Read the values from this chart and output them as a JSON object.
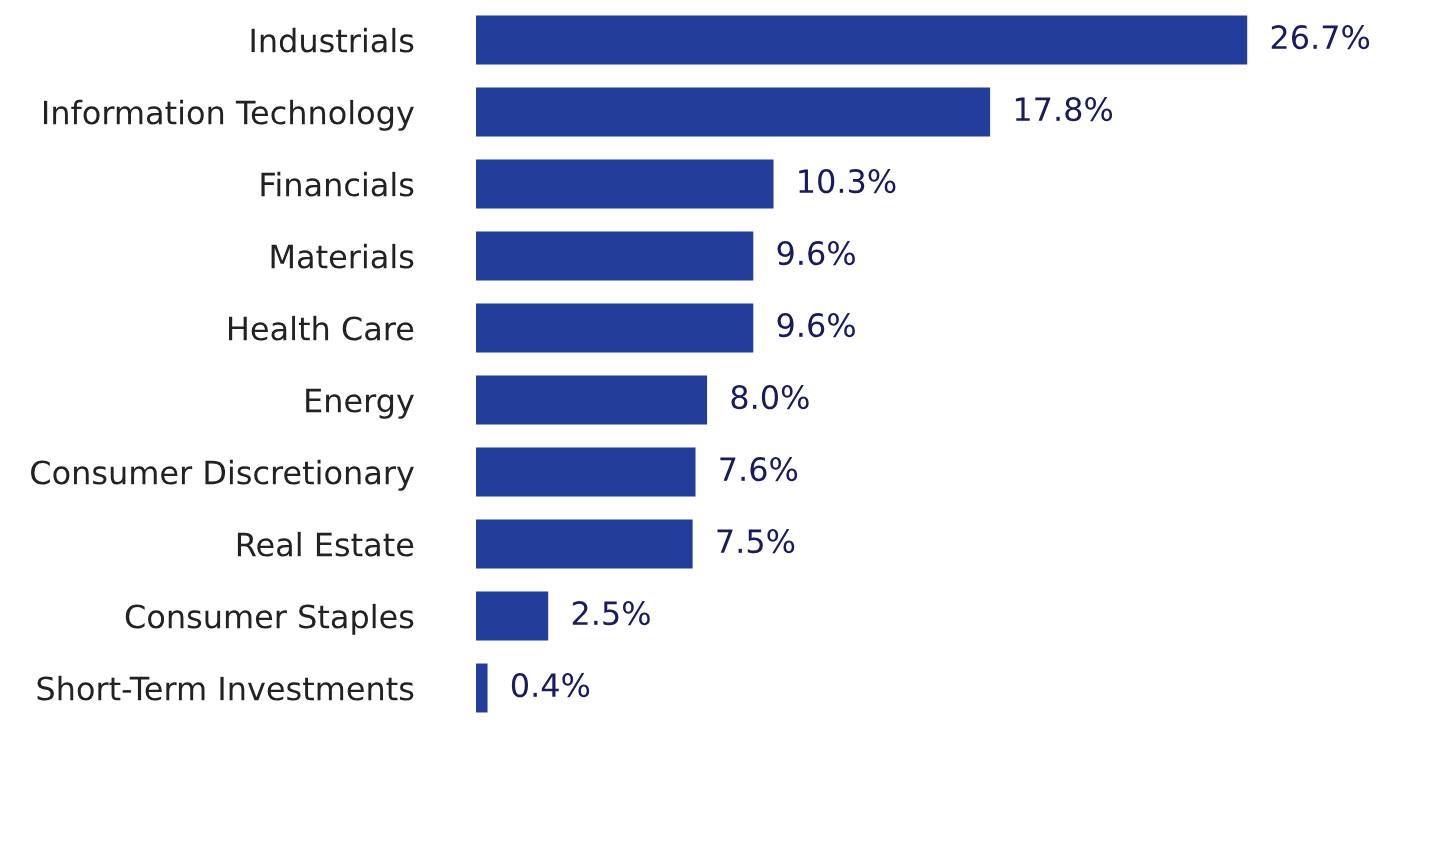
{
  "chart_data": {
    "type": "bar",
    "orientation": "horizontal",
    "categories": [
      "Industrials",
      "Information Technology",
      "Financials",
      "Materials",
      "Health Care",
      "Energy",
      "Consumer Discretionary",
      "Real Estate",
      "Consumer Staples",
      "Short-Term Investments"
    ],
    "values": [
      26.7,
      17.8,
      10.3,
      9.6,
      9.6,
      8.0,
      7.6,
      7.5,
      2.5,
      0.4
    ],
    "value_labels": [
      "26.7%",
      "17.8%",
      "10.3%",
      "9.6%",
      "9.6%",
      "8.0%",
      "7.6%",
      "7.5%",
      "2.5%",
      "0.4%"
    ],
    "color": "#233d9a",
    "grid": false,
    "legend": false
  }
}
